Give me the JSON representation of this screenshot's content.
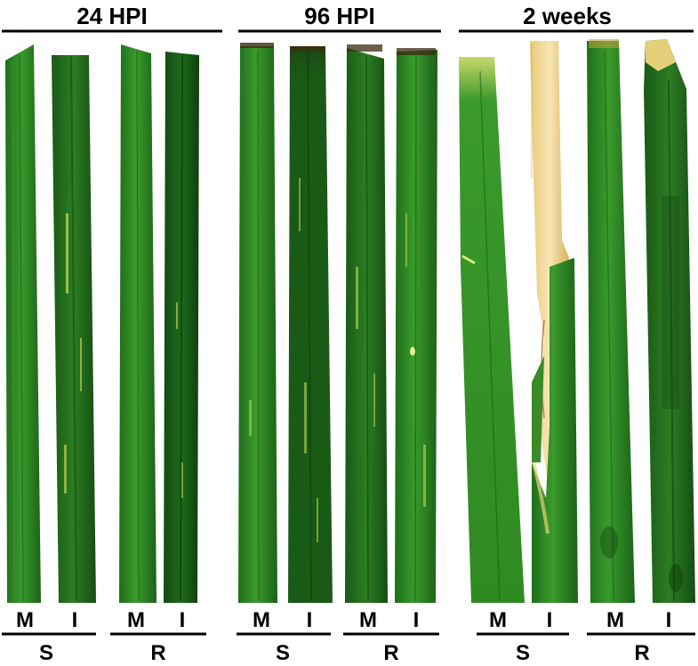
{
  "figure": {
    "panels": [
      {
        "title": "24 HPI",
        "groups": [
          {
            "label": "S",
            "leaves": [
              "M",
              "I"
            ]
          },
          {
            "label": "R",
            "leaves": [
              "M",
              "I"
            ]
          }
        ]
      },
      {
        "title": "96 HPI",
        "groups": [
          {
            "label": "S",
            "leaves": [
              "M",
              "I"
            ]
          },
          {
            "label": "R",
            "leaves": [
              "M",
              "I"
            ]
          }
        ]
      },
      {
        "title": "2 weeks",
        "groups": [
          {
            "label": "S",
            "leaves": [
              "M",
              "I"
            ]
          },
          {
            "label": "R",
            "leaves": [
              "M",
              "I"
            ]
          }
        ]
      }
    ]
  },
  "colors": {
    "leaf_green": "#2f8a22",
    "leaf_dark": "#0f3f0f",
    "lesion_yellow": "#c9e35a",
    "necrotic_brown": "#3a2a10",
    "senescent_straw": "#f0d79a"
  }
}
